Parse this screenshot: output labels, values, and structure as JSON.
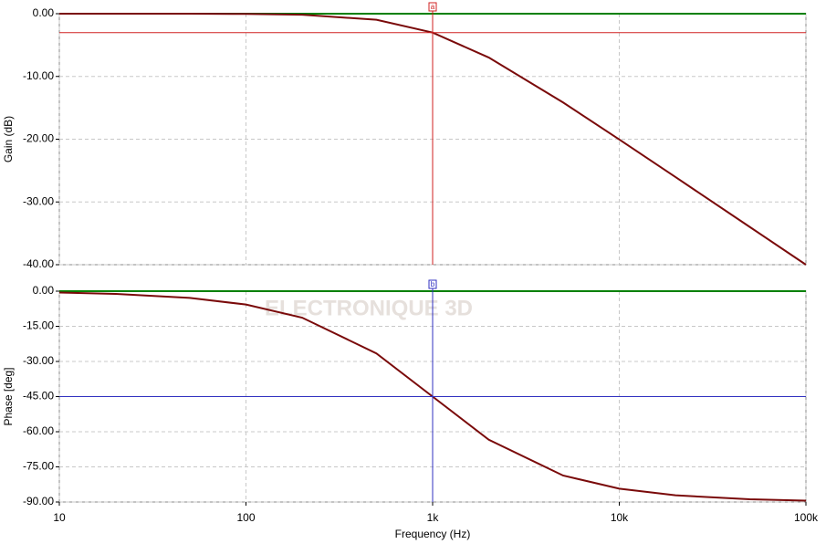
{
  "chart_data": [
    {
      "type": "line",
      "ylabel": "Gain (dB)",
      "x": [
        10,
        20,
        50,
        100,
        200,
        500,
        1000,
        2000,
        5000,
        10000,
        20000,
        50000,
        100000
      ],
      "values": [
        0,
        0,
        0,
        -0.04,
        -0.17,
        -0.97,
        -3.01,
        -6.99,
        -14.15,
        -20.04,
        -26.03,
        -33.98,
        -40.0
      ],
      "color": "#7a0a0a",
      "xlim": [
        10,
        100000
      ],
      "log_x": true,
      "ylim": [
        -40,
        0
      ],
      "yticks": [
        {
          "value": 0,
          "label": "0.00"
        },
        {
          "value": -10,
          "label": "-10.00"
        },
        {
          "value": -20,
          "label": "-20.00"
        },
        {
          "value": -30,
          "label": "-30.00"
        },
        {
          "value": -40,
          "label": "-40.00"
        }
      ],
      "grid": true,
      "zero_color": "#008000",
      "cursor": {
        "x": 1000,
        "y": -3.01,
        "label": "a",
        "color": "#d02020"
      }
    },
    {
      "type": "line",
      "ylabel": "Phase [deg]",
      "xlabel": "Frequency (Hz)",
      "x": [
        10,
        20,
        50,
        100,
        200,
        500,
        1000,
        2000,
        5000,
        10000,
        20000,
        50000,
        100000
      ],
      "values": [
        -0.57,
        -1.15,
        -2.86,
        -5.71,
        -11.31,
        -26.57,
        -45,
        -63.43,
        -78.69,
        -84.29,
        -87.14,
        -88.85,
        -89.43
      ],
      "color": "#7a0a0a",
      "xlim": [
        10,
        100000
      ],
      "log_x": true,
      "xticks": [
        10,
        100,
        {
          "value": 1000,
          "label": "1k"
        },
        {
          "value": 10000,
          "label": "10k"
        },
        {
          "value": 100000,
          "label": "100k"
        }
      ],
      "ylim": [
        -90,
        0
      ],
      "yticks": [
        {
          "value": 0,
          "label": "0.00"
        },
        {
          "value": -15,
          "label": "-15.00"
        },
        {
          "value": -30,
          "label": "-30.00"
        },
        {
          "value": -45,
          "label": "-45.00"
        },
        {
          "value": -60,
          "label": "-60.00"
        },
        {
          "value": -75,
          "label": "-75.00"
        },
        {
          "value": -90,
          "label": "-90.00"
        }
      ],
      "grid": true,
      "zero_color": "#008000",
      "watermark": "ELECTRONIQUE 3D",
      "cursor": {
        "x": 1000,
        "y": -45,
        "label": "b",
        "color": "#3030c0"
      }
    }
  ]
}
